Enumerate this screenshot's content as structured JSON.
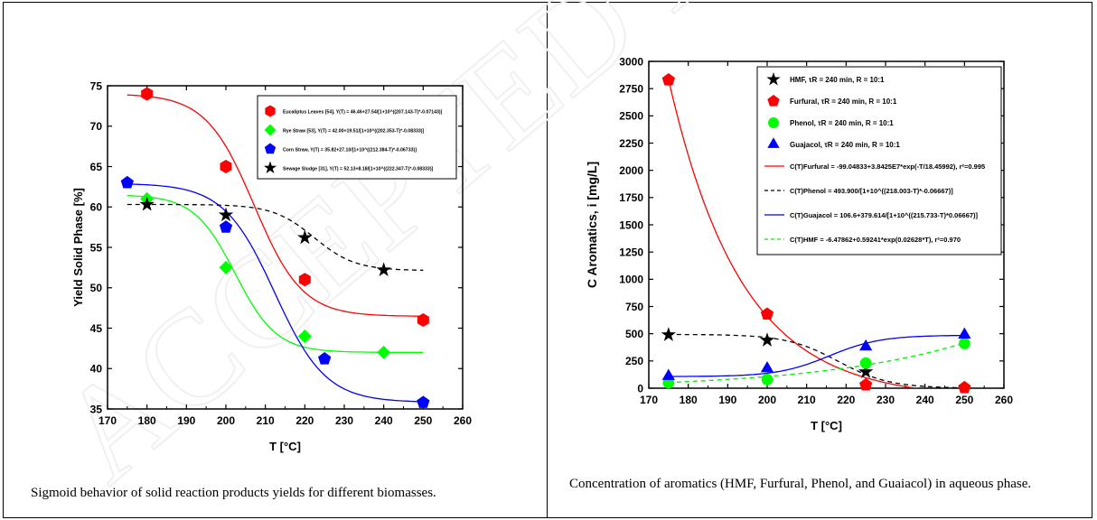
{
  "left_panel": {
    "caption": "Sigmoid behavior of solid reaction products yields for different biomasses."
  },
  "right_panel": {
    "caption": "Concentration of aromatics (HMF, Furfural, Phenol, and Guaiacol) in aqueous phase."
  },
  "watermark": {
    "text": "ACCEPTED MANUSCRIPT"
  },
  "chart_data": [
    {
      "type": "scatter",
      "title": "",
      "xlabel": "T [°C]",
      "ylabel": "Yield Solid Phase [%]",
      "xlim": [
        170,
        260
      ],
      "ylim": [
        35,
        75
      ],
      "xticks": [
        170,
        180,
        190,
        200,
        210,
        220,
        230,
        240,
        250,
        260
      ],
      "yticks": [
        35,
        40,
        45,
        50,
        55,
        60,
        65,
        70,
        75
      ],
      "legend_position": "top-right",
      "series": [
        {
          "name": "Eucaliptus Leaves [54], Y(T) = 46.46+27.54/[1+10^((207.143-T)*-0.07143)]",
          "marker": "hexagon",
          "color": "#ff0000",
          "line": "solid",
          "x": [
            180,
            200,
            220,
            250
          ],
          "y": [
            74,
            65,
            51,
            46
          ],
          "fit": {
            "a": 46.46,
            "b": 27.54,
            "c": 207.143,
            "k": 0.07143
          }
        },
        {
          "name": "Rye Straw [53], Y(T) = 42.00+19.51/[1+10^((202.353-T)*-0.08333)]",
          "marker": "diamond",
          "color": "#00ff00",
          "line": "solid",
          "x": [
            180,
            200,
            220,
            240
          ],
          "y": [
            61,
            52.5,
            44,
            42
          ],
          "fit": {
            "a": 42.0,
            "b": 19.51,
            "c": 202.353,
            "k": 0.08333
          }
        },
        {
          "name": "Corn Straw, Y(T) = 35.82+27.10/[1+10^((212.384-T)*-0.06733)]",
          "marker": "pentagon",
          "color": "#0000ff",
          "line": "solid",
          "x": [
            175,
            200,
            225,
            250
          ],
          "y": [
            63,
            57.5,
            41.2,
            35.8
          ],
          "fit": {
            "a": 35.82,
            "b": 27.1,
            "c": 212.384,
            "k": 0.06733
          }
        },
        {
          "name": "Sewage Sludge [31], Y(T) = 52.13+8.18/[1+10^((222.347-T)*-0.08333)]",
          "marker": "star",
          "color": "#000000",
          "line": "dashed",
          "x": [
            180,
            200,
            220,
            240
          ],
          "y": [
            60.3,
            59,
            56.2,
            52.2
          ],
          "fit": {
            "a": 52.13,
            "b": 8.18,
            "c": 222.347,
            "k": 0.08333
          }
        }
      ]
    },
    {
      "type": "scatter",
      "title": "",
      "xlabel": "T [°C]",
      "ylabel": "C Aromatics, i [mg/L]",
      "xlim": [
        170,
        260
      ],
      "ylim": [
        0,
        3000
      ],
      "xticks": [
        170,
        180,
        190,
        200,
        210,
        220,
        230,
        240,
        250,
        260
      ],
      "yticks": [
        0,
        250,
        500,
        750,
        1000,
        1250,
        1500,
        1750,
        2000,
        2250,
        2500,
        2750,
        3000
      ],
      "legend_position": "top-right",
      "markers": [
        {
          "name": "HMF, τR = 240 min, R = 10:1",
          "marker": "star",
          "color": "#000000",
          "x": [
            175,
            200,
            225
          ],
          "y": [
            490,
            440,
            150
          ]
        },
        {
          "name": "Furfural, τR = 240 min, R = 10:1",
          "marker": "pentagon",
          "color": "#ff0000",
          "x": [
            175,
            200,
            225,
            250
          ],
          "y": [
            2830,
            680,
            30,
            5
          ]
        },
        {
          "name": "Phenol, τR = 240 min, R = 10:1",
          "marker": "circle",
          "color": "#00ff00",
          "x": [
            175,
            200,
            225,
            250
          ],
          "y": [
            50,
            80,
            230,
            410
          ]
        },
        {
          "name": "Guajacol, τR = 240 min, R = 10:1",
          "marker": "triangle",
          "color": "#0000ff",
          "x": [
            175,
            200,
            225,
            250
          ],
          "y": [
            110,
            180,
            380,
            490
          ]
        }
      ],
      "fits": [
        {
          "name": "C(T)Furfural = -99.04833+3.8425E7*exp(-T/18.45992), r²=0.995",
          "color": "#ff0000",
          "line": "solid",
          "model": "exp",
          "a": -99.04833,
          "b": 38425000,
          "t": 18.45992
        },
        {
          "name": "C(T)Phenol = 493.900/[1+10^((218.003-T)*-0.06667)]",
          "color": "#000000",
          "line": "dashed",
          "model": "decsig",
          "b": 493.9,
          "c": 218.003,
          "k": 0.06667
        },
        {
          "name": "C(T)Guajacol = 106.6+379.614/[1+10^((215.733-T)*0.06667)]",
          "color": "#0000ff",
          "line": "solid",
          "model": "incsig",
          "a": 106.6,
          "b": 379.614,
          "c": 215.733,
          "k": 0.06667
        },
        {
          "name": "C(T)HMF = -6.47862+0.59241*exp(0.02628*T), r²=0.970",
          "color": "#00ee00",
          "line": "dashed",
          "model": "expgrow",
          "a": -6.47862,
          "b": 0.59241,
          "r": 0.02628
        }
      ]
    }
  ]
}
